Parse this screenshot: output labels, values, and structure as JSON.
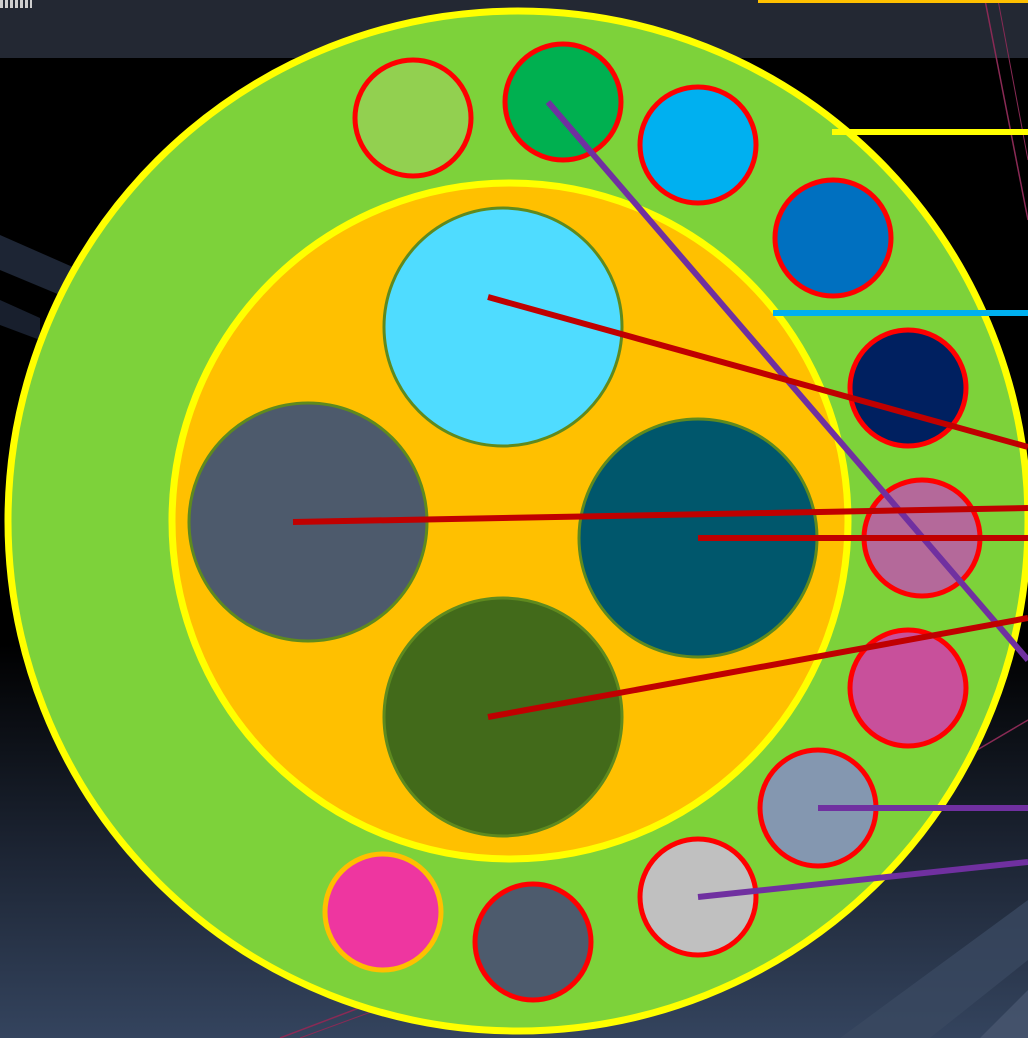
{
  "colors": {
    "outer_ring": "#7dd23a",
    "inner_core": "#ffc000",
    "ring_border": "#ffff00",
    "fiber_border": "#ff0000",
    "large_element_border": "#5f8a1e",
    "leader_red": "#c00000",
    "leader_purple": "#7030a0",
    "leader_yellow": "#ffff00",
    "leader_blue": "#00b0f0"
  },
  "diagram": {
    "small_elements": [
      {
        "color": "#92d050"
      },
      {
        "color": "#00b050"
      },
      {
        "color": "#00b0f0"
      },
      {
        "color": "#0070c0"
      },
      {
        "color": "#002060"
      },
      {
        "color": "#b4699a"
      },
      {
        "color": "#c8509b"
      },
      {
        "color": "#8497b0"
      },
      {
        "color": "#c0c0c0"
      },
      {
        "color": "#4d5b6d"
      },
      {
        "color": "#ee36a0",
        "border": "#ffc000"
      }
    ],
    "large_elements": [
      {
        "color": "#4fdcff"
      },
      {
        "color": "#4d5a6c"
      },
      {
        "color": "#00576c"
      },
      {
        "color": "#426a1a"
      }
    ]
  }
}
